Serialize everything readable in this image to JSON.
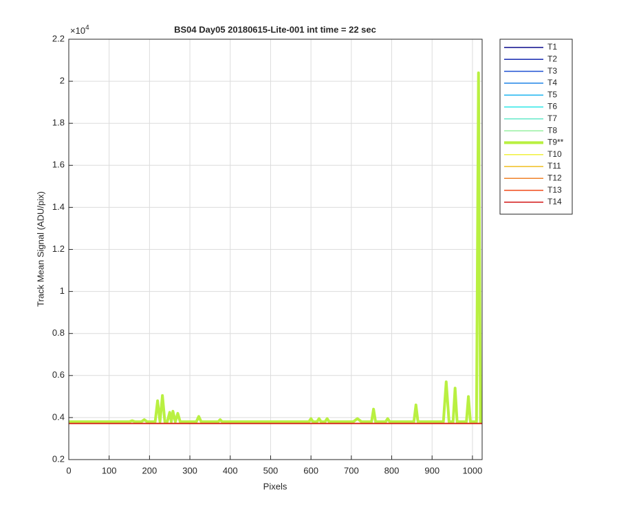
{
  "chart_data": {
    "type": "line",
    "title": "BS04 Day05 20180615-Lite-001 int time = 22 sec",
    "xlabel": "Pixels",
    "ylabel": "Track Mean Signal (ADU/pix)",
    "y_exponent": {
      "base": "×10",
      "power": "4"
    },
    "xlim": [
      0,
      1024
    ],
    "xticks": [
      0,
      100,
      200,
      300,
      400,
      500,
      600,
      700,
      800,
      900,
      1000
    ],
    "ylim": [
      0.2,
      2.2
    ],
    "yticks": [
      0.2,
      0.4,
      0.6,
      0.8,
      1,
      1.2,
      1.4,
      1.6,
      1.8,
      2,
      2.2
    ],
    "grid": true,
    "legend": "outside-right",
    "series": [
      {
        "name": "T1",
        "color": "#0a0a8c",
        "linewidth": 1.5,
        "x": [
          1,
          1024
        ],
        "values": [
          0.372,
          0.372
        ]
      },
      {
        "name": "T2",
        "color": "#1428b0",
        "linewidth": 1.5,
        "x": [
          1,
          1024
        ],
        "values": [
          0.372,
          0.372
        ]
      },
      {
        "name": "T3",
        "color": "#1e50d2",
        "linewidth": 1.5,
        "x": [
          1,
          1024
        ],
        "values": [
          0.372,
          0.372
        ]
      },
      {
        "name": "T4",
        "color": "#1e82e6",
        "linewidth": 1.5,
        "x": [
          1,
          1024
        ],
        "values": [
          0.372,
          0.372
        ]
      },
      {
        "name": "T5",
        "color": "#1eb4f0",
        "linewidth": 1.5,
        "x": [
          1,
          1024
        ],
        "values": [
          0.372,
          0.372
        ]
      },
      {
        "name": "T6",
        "color": "#28e6e6",
        "linewidth": 1.5,
        "x": [
          1,
          1024
        ],
        "values": [
          0.372,
          0.372
        ]
      },
      {
        "name": "T7",
        "color": "#64e8c8",
        "linewidth": 1.5,
        "x": [
          1,
          1024
        ],
        "values": [
          0.372,
          0.372
        ]
      },
      {
        "name": "T8",
        "color": "#96f0a0",
        "linewidth": 1.5,
        "x": [
          1,
          1024
        ],
        "values": [
          0.372,
          0.372
        ]
      },
      {
        "name": "T9**",
        "color": "#b9f041",
        "linewidth": 4,
        "x": [
          1,
          150,
          157,
          164,
          180,
          187,
          194,
          214,
          220,
          226,
          232,
          238,
          244,
          250,
          254,
          258,
          264,
          270,
          276,
          316,
          322,
          328,
          370,
          375,
          380,
          595,
          600,
          605,
          615,
          620,
          625,
          635,
          640,
          645,
          705,
          715,
          725,
          750,
          755,
          760,
          785,
          790,
          795,
          855,
          860,
          865,
          928,
          935,
          942,
          952,
          957,
          962,
          985,
          990,
          995,
          1010,
          1015,
          1020,
          1024
        ],
        "values": [
          0.38,
          0.38,
          0.385,
          0.38,
          0.38,
          0.39,
          0.38,
          0.38,
          0.48,
          0.38,
          0.505,
          0.38,
          0.38,
          0.425,
          0.38,
          0.43,
          0.38,
          0.42,
          0.38,
          0.38,
          0.405,
          0.38,
          0.38,
          0.39,
          0.38,
          0.38,
          0.395,
          0.38,
          0.38,
          0.395,
          0.38,
          0.38,
          0.395,
          0.38,
          0.38,
          0.395,
          0.38,
          0.38,
          0.44,
          0.38,
          0.38,
          0.395,
          0.38,
          0.38,
          0.46,
          0.38,
          0.38,
          0.57,
          0.38,
          0.38,
          0.54,
          0.38,
          0.38,
          0.5,
          0.38,
          0.38,
          2.04,
          0.38,
          0.38
        ]
      },
      {
        "name": "T10",
        "color": "#f0f03c",
        "linewidth": 1.5,
        "x": [
          1,
          1024
        ],
        "values": [
          0.372,
          0.372
        ]
      },
      {
        "name": "T11",
        "color": "#f0be1e",
        "linewidth": 1.5,
        "x": [
          1,
          1024
        ],
        "values": [
          0.372,
          0.372
        ]
      },
      {
        "name": "T12",
        "color": "#f08228",
        "linewidth": 1.5,
        "x": [
          1,
          1024
        ],
        "values": [
          0.372,
          0.372
        ]
      },
      {
        "name": "T13",
        "color": "#f04614",
        "linewidth": 1.5,
        "x": [
          1,
          1024
        ],
        "values": [
          0.372,
          0.372
        ]
      },
      {
        "name": "T14",
        "color": "#d21414",
        "linewidth": 1.5,
        "x": [
          1,
          1024
        ],
        "values": [
          0.372,
          0.372
        ]
      }
    ]
  }
}
